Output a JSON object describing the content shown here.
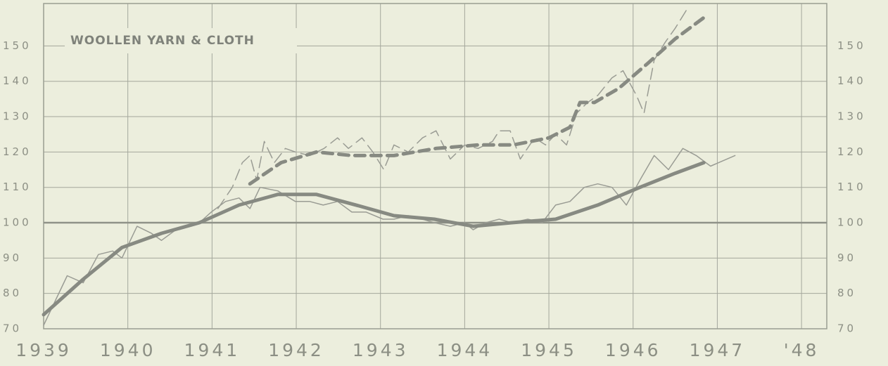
{
  "chart_data": {
    "type": "line",
    "annotation": "WOOLLEN YARN & CLOTH",
    "xlim": [
      1939,
      1948.3
    ],
    "xticks": [
      1939,
      1940,
      1941,
      1942,
      1943,
      1944,
      1945,
      1946,
      1947,
      {
        "value": 1948,
        "label": "'48"
      }
    ],
    "ylim": [
      70,
      162
    ],
    "yticks": [
      70,
      80,
      90,
      100,
      110,
      120,
      130,
      140,
      150
    ],
    "grid": true,
    "reference_line": 100,
    "series": [
      {
        "color": "#9a9c94",
        "width": 1.5,
        "style": "solid",
        "x": [
          1939.0,
          1939.28,
          1939.47,
          1939.65,
          1939.82,
          1939.93,
          1940.11,
          1940.28,
          1940.4,
          1940.57,
          1940.74,
          1940.85,
          1940.99,
          1941.16,
          1941.32,
          1941.45,
          1941.57,
          1941.78,
          1941.99,
          1942.16,
          1942.32,
          1942.49,
          1942.66,
          1942.83,
          1943.03,
          1943.16,
          1943.33,
          1943.5,
          1943.64,
          1943.83,
          1944.0,
          1944.1,
          1944.25,
          1944.41,
          1944.56,
          1944.75,
          1944.92,
          1945.08,
          1945.25,
          1945.42,
          1945.58,
          1945.75,
          1945.92,
          1946.08,
          1946.25,
          1946.42,
          1946.59,
          1946.75,
          1946.92,
          1947.21
        ],
        "values": [
          71,
          85,
          83,
          91,
          92,
          90,
          99,
          97,
          95,
          98,
          99,
          100,
          103,
          106,
          107,
          104,
          110,
          109,
          106,
          106,
          105,
          106,
          103,
          103,
          101,
          101,
          102,
          101,
          100,
          99,
          100,
          98,
          100,
          101,
          100,
          101,
          100,
          105,
          106,
          110,
          111,
          110,
          105,
          112,
          119,
          115,
          121,
          119,
          116,
          119
        ]
      },
      {
        "color": "#878a82",
        "width": 5,
        "style": "solid",
        "x": [
          1939.0,
          1939.47,
          1939.93,
          1940.4,
          1940.85,
          1941.32,
          1941.78,
          1942.24,
          1942.71,
          1943.16,
          1943.64,
          1944.1,
          1944.56,
          1945.08,
          1945.58,
          1946.08,
          1946.5,
          1946.84
        ],
        "values": [
          74,
          84,
          93,
          97,
          100,
          105,
          108,
          108,
          105,
          102,
          101,
          99,
          100,
          101,
          105,
          110,
          114,
          117
        ]
      },
      {
        "color": "#9a9c94",
        "width": 1.5,
        "style": "dashed",
        "x": [
          1941.07,
          1941.24,
          1941.36,
          1941.45,
          1941.53,
          1941.62,
          1941.74,
          1941.87,
          1941.99,
          1942.16,
          1942.33,
          1942.49,
          1942.62,
          1942.78,
          1942.91,
          1943.04,
          1943.16,
          1943.33,
          1943.5,
          1943.66,
          1943.83,
          1944.0,
          1944.16,
          1944.33,
          1944.41,
          1944.54,
          1944.66,
          1944.83,
          1944.96,
          1945.08,
          1945.21,
          1945.33,
          1945.46,
          1945.58,
          1945.75,
          1945.88,
          1946.04,
          1946.13,
          1946.25,
          1946.38,
          1946.5,
          1946.63
        ],
        "values": [
          104,
          110,
          117,
          119,
          112,
          123,
          117,
          121,
          120,
          119,
          121,
          124,
          121,
          124,
          120,
          115,
          122,
          120,
          124,
          126,
          118,
          122,
          121,
          123,
          126,
          126,
          118,
          124,
          122,
          125,
          122,
          131,
          134,
          136,
          141,
          143,
          136,
          131,
          146,
          151,
          155,
          160
        ]
      },
      {
        "color": "#878a82",
        "width": 5,
        "style": "dashed",
        "x": [
          1941.45,
          1941.82,
          1942.24,
          1942.66,
          1943.16,
          1943.66,
          1944.16,
          1944.58,
          1945.0,
          1945.25,
          1945.37,
          1945.54,
          1945.83,
          1946.17,
          1946.5,
          1946.84
        ],
        "values": [
          111,
          117,
          120,
          119,
          119,
          121,
          122,
          122,
          124,
          127,
          134,
          134,
          138,
          145,
          152,
          158
        ]
      }
    ]
  }
}
